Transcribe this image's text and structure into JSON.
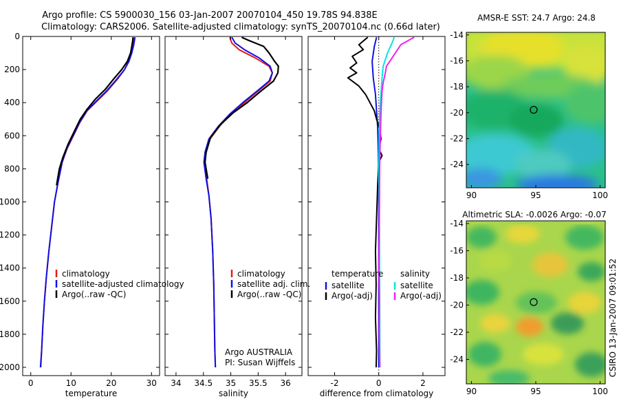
{
  "header": {
    "line1": "Argo profile: CS 5900030_156 03-Jan-2007 20070104_450 19.78S 94.838E",
    "line2": "Climatology: CARS2006. Satellite-adjusted climatology: synTS_20070104.nc (0.66d later)"
  },
  "side_label": "CSIRO 13-Jan-2007 09:01:52",
  "colors": {
    "climatology": "#e31a1c",
    "satellite": "#1010e0",
    "argo": "#000000",
    "sal_sat": "#00e5e5",
    "sal_argo": "#ee22ee",
    "dotted": "#000000"
  },
  "chart_data": [
    {
      "type": "line",
      "id": "temperature",
      "xlabel": "temperature",
      "ylabel": "",
      "xlim": [
        -2,
        32
      ],
      "ylim": [
        2050,
        0
      ],
      "xticks": [
        0,
        10,
        20,
        30
      ],
      "yticks": [
        0,
        200,
        400,
        600,
        800,
        1000,
        1200,
        1400,
        1600,
        1800,
        2000
      ],
      "legend": [
        "climatology",
        "satellite-adjusted climatology",
        "Argo(..raw -QC)"
      ],
      "series": [
        {
          "name": "climatology",
          "color": "#e31a1c",
          "points": [
            [
              25.6,
              5
            ],
            [
              25.5,
              20
            ],
            [
              25.3,
              50
            ],
            [
              25,
              100
            ],
            [
              24.3,
              150
            ],
            [
              23.3,
              200
            ],
            [
              21.5,
              260
            ],
            [
              19,
              330
            ],
            [
              16.5,
              390
            ],
            [
              14,
              450
            ],
            [
              12.2,
              520
            ],
            [
              10.6,
              600
            ],
            [
              9,
              680
            ],
            [
              7.8,
              760
            ],
            [
              6.8,
              880
            ],
            [
              5.9,
              1000
            ],
            [
              5.2,
              1150
            ],
            [
              4.5,
              1300
            ],
            [
              3.9,
              1450
            ],
            [
              3.4,
              1600
            ],
            [
              3.0,
              1750
            ],
            [
              2.7,
              1900
            ],
            [
              2.5,
              2000
            ]
          ]
        },
        {
          "name": "satellite-adjusted climatology",
          "color": "#1010e0",
          "points": [
            [
              25.9,
              5
            ],
            [
              25.8,
              20
            ],
            [
              25.6,
              50
            ],
            [
              25.1,
              100
            ],
            [
              24.4,
              150
            ],
            [
              23.3,
              200
            ],
            [
              21.3,
              260
            ],
            [
              18.8,
              330
            ],
            [
              16.3,
              390
            ],
            [
              13.9,
              450
            ],
            [
              12.1,
              520
            ],
            [
              10.5,
              600
            ],
            [
              8.9,
              680
            ],
            [
              7.8,
              760
            ],
            [
              6.8,
              880
            ],
            [
              5.9,
              1000
            ],
            [
              5.2,
              1150
            ],
            [
              4.5,
              1300
            ],
            [
              3.9,
              1450
            ],
            [
              3.4,
              1600
            ],
            [
              3.0,
              1750
            ],
            [
              2.7,
              1900
            ],
            [
              2.4,
              2000
            ]
          ]
        },
        {
          "name": "Argo(..raw -QC)",
          "color": "#000000",
          "points": [
            [
              25.4,
              5
            ],
            [
              25.3,
              30
            ],
            [
              25.1,
              60
            ],
            [
              24.8,
              100
            ],
            [
              24,
              150
            ],
            [
              22.6,
              200
            ],
            [
              20.5,
              260
            ],
            [
              18.5,
              320
            ],
            [
              16,
              380
            ],
            [
              14,
              440
            ],
            [
              12.3,
              500
            ],
            [
              10.7,
              580
            ],
            [
              9.3,
              650
            ],
            [
              8,
              730
            ],
            [
              7.1,
              800
            ],
            [
              6.4,
              900
            ]
          ]
        }
      ]
    },
    {
      "type": "line",
      "id": "salinity",
      "xlabel": "salinity",
      "xlim": [
        33.8,
        36.3
      ],
      "ylim": [
        2050,
        0
      ],
      "xticks": [
        34,
        34.5,
        35,
        35.5,
        36
      ],
      "legend": [
        "climatology",
        "satellite adj. clim.",
        "Argo(..raw -QC)"
      ],
      "annotation": [
        "Argo AUSTRALIA",
        "PI: Susan Wijffels"
      ],
      "series": [
        {
          "name": "climatology",
          "color": "#e31a1c",
          "points": [
            [
              34.98,
              5
            ],
            [
              35.02,
              40
            ],
            [
              35.15,
              80
            ],
            [
              35.45,
              130
            ],
            [
              35.7,
              180
            ],
            [
              35.76,
              220
            ],
            [
              35.72,
              270
            ],
            [
              35.5,
              330
            ],
            [
              35.25,
              400
            ],
            [
              35,
              470
            ],
            [
              34.8,
              540
            ],
            [
              34.62,
              620
            ],
            [
              34.54,
              700
            ],
            [
              34.52,
              760
            ],
            [
              34.56,
              860
            ],
            [
              34.6,
              960
            ],
            [
              34.64,
              1100
            ],
            [
              34.67,
              1300
            ],
            [
              34.69,
              1500
            ],
            [
              34.7,
              1700
            ],
            [
              34.71,
              1900
            ],
            [
              34.72,
              2000
            ]
          ]
        },
        {
          "name": "satellite adj. clim.",
          "color": "#1010e0",
          "points": [
            [
              35.02,
              5
            ],
            [
              35.08,
              40
            ],
            [
              35.25,
              80
            ],
            [
              35.52,
              130
            ],
            [
              35.72,
              180
            ],
            [
              35.76,
              220
            ],
            [
              35.7,
              270
            ],
            [
              35.48,
              330
            ],
            [
              35.22,
              400
            ],
            [
              34.98,
              470
            ],
            [
              34.78,
              540
            ],
            [
              34.6,
              620
            ],
            [
              34.53,
              700
            ],
            [
              34.51,
              760
            ],
            [
              34.55,
              860
            ],
            [
              34.6,
              960
            ],
            [
              34.64,
              1100
            ],
            [
              34.67,
              1300
            ],
            [
              34.69,
              1500
            ],
            [
              34.7,
              1700
            ],
            [
              34.71,
              1900
            ],
            [
              34.72,
              2000
            ]
          ]
        },
        {
          "name": "Argo(..raw -QC)",
          "color": "#000000",
          "points": [
            [
              35.2,
              5
            ],
            [
              35.3,
              20
            ],
            [
              35.45,
              40
            ],
            [
              35.6,
              60
            ],
            [
              35.7,
              100
            ],
            [
              35.8,
              150
            ],
            [
              35.87,
              180
            ],
            [
              35.86,
              220
            ],
            [
              35.78,
              270
            ],
            [
              35.55,
              330
            ],
            [
              35.3,
              400
            ],
            [
              35.05,
              460
            ],
            [
              34.82,
              530
            ],
            [
              34.63,
              610
            ],
            [
              34.55,
              700
            ],
            [
              34.53,
              760
            ],
            [
              34.58,
              860
            ]
          ]
        }
      ]
    },
    {
      "type": "line",
      "id": "difference",
      "xlabel": "difference from climatology",
      "xlim": [
        -3.2,
        3
      ],
      "ylim": [
        2050,
        0
      ],
      "xticks": [
        -2,
        0,
        2
      ],
      "legend_temperature": {
        "title": "temperature",
        "items": [
          "satellite",
          "Argo(-adj)"
        ]
      },
      "legend_salinity": {
        "title": "salinity",
        "items": [
          "satellite",
          "Argo(-adj)"
        ]
      },
      "series": [
        {
          "name": "temperature satellite",
          "color": "#1010e0",
          "points": [
            [
              -0.1,
              5
            ],
            [
              -0.2,
              60
            ],
            [
              -0.3,
              150
            ],
            [
              -0.25,
              250
            ],
            [
              -0.15,
              350
            ],
            [
              -0.1,
              450
            ],
            [
              -0.05,
              550
            ],
            [
              -0.02,
              700
            ],
            [
              0,
              900
            ],
            [
              0,
              1200
            ],
            [
              0,
              1500
            ],
            [
              0,
              1800
            ],
            [
              0,
              2000
            ]
          ]
        },
        {
          "name": "temperature Argo(-adj)",
          "color": "#000000",
          "points": [
            [
              -0.5,
              5
            ],
            [
              -0.9,
              50
            ],
            [
              -0.7,
              80
            ],
            [
              -1.2,
              120
            ],
            [
              -1.0,
              160
            ],
            [
              -1.3,
              190
            ],
            [
              -1.0,
              220
            ],
            [
              -1.4,
              250
            ],
            [
              -0.9,
              300
            ],
            [
              -0.6,
              350
            ],
            [
              -0.4,
              400
            ],
            [
              -0.2,
              450
            ],
            [
              -0.1,
              500
            ],
            [
              0.05,
              560
            ],
            [
              0.1,
              620
            ],
            [
              0.0,
              680
            ],
            [
              0.15,
              720
            ],
            [
              0.0,
              760
            ],
            [
              -0.05,
              900
            ],
            [
              -0.1,
              1100
            ],
            [
              -0.15,
              1300
            ],
            [
              -0.12,
              1500
            ],
            [
              -0.15,
              1700
            ],
            [
              -0.1,
              1900
            ],
            [
              -0.12,
              2000
            ]
          ]
        },
        {
          "name": "salinity satellite",
          "color": "#00e5e5",
          "points": [
            [
              0.7,
              5
            ],
            [
              0.6,
              40
            ],
            [
              0.4,
              100
            ],
            [
              0.2,
              180
            ],
            [
              0.15,
              250
            ],
            [
              0.1,
              350
            ],
            [
              0.05,
              450
            ],
            [
              0.02,
              600
            ],
            [
              0,
              800
            ],
            [
              0.02,
              1000
            ],
            [
              0.03,
              1300
            ],
            [
              0.04,
              1600
            ],
            [
              0.05,
              1900
            ],
            [
              0.05,
              2000
            ]
          ]
        },
        {
          "name": "salinity Argo(-adj)",
          "color": "#ee22ee",
          "points": [
            [
              1.6,
              5
            ],
            [
              1.4,
              20
            ],
            [
              1.0,
              50
            ],
            [
              0.8,
              90
            ],
            [
              0.6,
              130
            ],
            [
              0.35,
              180
            ],
            [
              0.3,
              220
            ],
            [
              0.2,
              280
            ],
            [
              0.15,
              330
            ],
            [
              0.12,
              400
            ],
            [
              0.1,
              480
            ],
            [
              0.08,
              560
            ],
            [
              0.06,
              660
            ],
            [
              0.04,
              800
            ],
            [
              0.03,
              1000
            ],
            [
              0.02,
              1200
            ],
            [
              0.01,
              1400
            ],
            [
              0.03,
              1600
            ],
            [
              0.02,
              1800
            ],
            [
              0.04,
              1950
            ],
            [
              0.05,
              2000
            ]
          ]
        }
      ]
    },
    {
      "type": "heatmap",
      "id": "amsr",
      "title": "AMSR-E SST: 24.7  Argo: 24.8",
      "xlim": [
        89.6,
        100.4
      ],
      "ylim": [
        -25.8,
        -13.8
      ],
      "xticks": [
        90,
        95,
        100
      ],
      "yticks": [
        -14,
        -16,
        -18,
        -20,
        -22,
        -24
      ],
      "marker": [
        94.838,
        -19.78
      ]
    },
    {
      "type": "heatmap",
      "id": "sla",
      "title": "Altimetric SLA: -0.0026  Argo: -0.07",
      "xlim": [
        89.6,
        100.4
      ],
      "ylim": [
        -25.8,
        -13.8
      ],
      "xticks": [
        90,
        95,
        100
      ],
      "yticks": [
        -14,
        -16,
        -18,
        -20,
        -22,
        -24
      ],
      "marker": [
        94.838,
        -19.78
      ]
    }
  ]
}
